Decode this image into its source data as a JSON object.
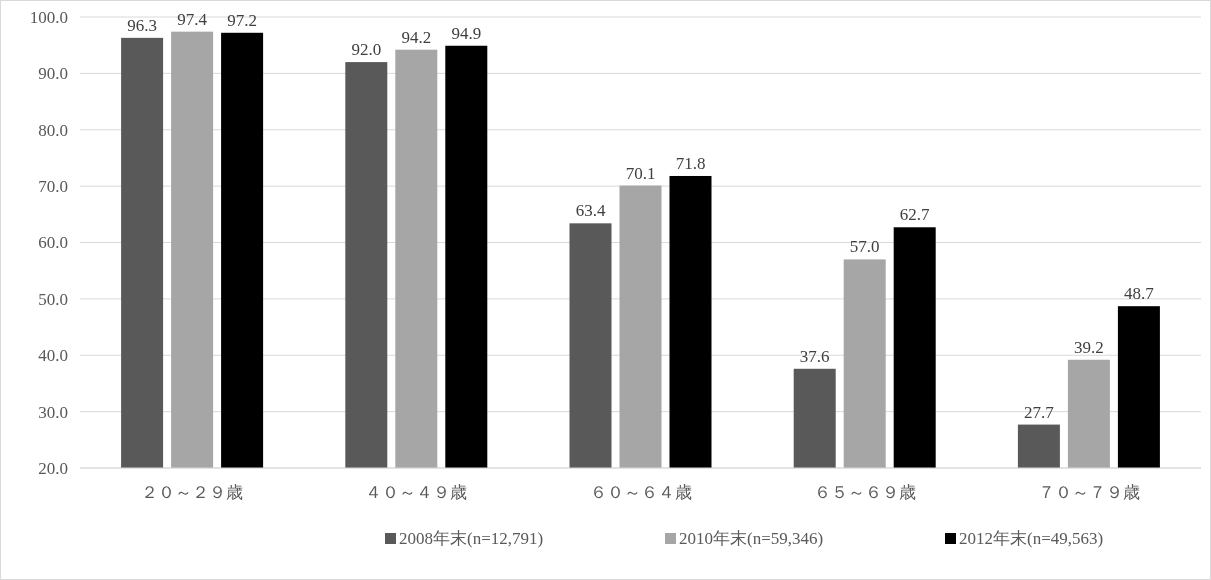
{
  "chart_data": {
    "type": "bar",
    "categories": [
      "２０～２９歳",
      "４０～４９歳",
      "６０～６４歳",
      "６５～６９歳",
      "７０～７９歳"
    ],
    "series": [
      {
        "name": "2008年末(n=12,791)",
        "color": "#595959",
        "values": [
          96.3,
          92.0,
          63.4,
          37.6,
          27.7
        ],
        "value_labels": [
          "96.3",
          "92.0",
          "63.4",
          "37.6",
          "27.7"
        ]
      },
      {
        "name": "2010年末(n=59,346)",
        "color": "#a6a6a6",
        "values": [
          97.4,
          94.2,
          70.1,
          57.0,
          39.2
        ],
        "value_labels": [
          "97.4",
          "94.2",
          "70.1",
          "57.0",
          "39.2"
        ]
      },
      {
        "name": "2012年末(n=49,563)",
        "color": "#000000",
        "values": [
          97.2,
          94.9,
          71.8,
          62.7,
          48.7
        ],
        "value_labels": [
          "97.2",
          "94.9",
          "71.8",
          "62.7",
          "48.7"
        ]
      }
    ],
    "ylim": [
      20,
      100
    ],
    "yticks": [
      {
        "value": 20,
        "label": "20.0"
      },
      {
        "value": 30,
        "label": "30.0"
      },
      {
        "value": 40,
        "label": "40.0"
      },
      {
        "value": 50,
        "label": "50.0"
      },
      {
        "value": 60,
        "label": "60.0"
      },
      {
        "value": 70,
        "label": "70.0"
      },
      {
        "value": 80,
        "label": "80.0"
      },
      {
        "value": 90,
        "label": "90.0"
      },
      {
        "value": 100,
        "label": "100.0"
      }
    ],
    "grid": "y",
    "legend": "bottom"
  }
}
